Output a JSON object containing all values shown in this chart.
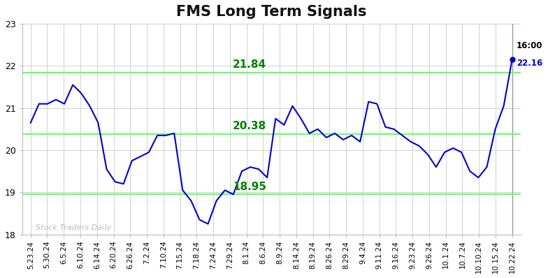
{
  "title": "FMS Long Term Signals",
  "line_color": "#0000cc",
  "hline_color": "#66ff66",
  "hline_values": [
    18.95,
    20.38,
    21.84
  ],
  "hline_label_color": "#008000",
  "hline_labels": [
    "18.95",
    "20.38",
    "21.84"
  ],
  "watermark": "Stock Traders Daily",
  "watermark_color": "#bbbbbb",
  "last_label": "16:00",
  "last_value": "22.16",
  "last_label_color": "#000000",
  "last_value_color": "#0000cc",
  "ylim": [
    18,
    23
  ],
  "yticks": [
    18,
    19,
    20,
    21,
    22,
    23
  ],
  "background_color": "#ffffff",
  "grid_color": "#d0d0d0",
  "x_labels": [
    "5.23.24",
    "5.30.24",
    "6.5.24",
    "6.10.24",
    "6.14.24",
    "6.20.24",
    "6.26.24",
    "7.2.24",
    "7.10.24",
    "7.15.24",
    "7.18.24",
    "7.24.24",
    "7.29.24",
    "8.1.24",
    "8.6.24",
    "8.9.24",
    "8.14.24",
    "8.19.24",
    "8.26.24",
    "8.29.24",
    "9.4.24",
    "9.11.24",
    "9.16.24",
    "9.23.24",
    "9.26.24",
    "10.1.24",
    "10.7.24",
    "10.10.24",
    "10.15.24",
    "10.22.24"
  ],
  "y_values": [
    20.65,
    21.1,
    21.1,
    21.2,
    21.1,
    21.55,
    21.35,
    21.05,
    20.65,
    19.55,
    19.25,
    19.2,
    19.75,
    19.85,
    19.95,
    20.35,
    20.35,
    20.4,
    19.05,
    18.8,
    18.35,
    18.25,
    18.8,
    19.05,
    18.95,
    19.5,
    19.6,
    19.55,
    19.35,
    20.75,
    20.6,
    21.05,
    20.75,
    20.4,
    20.5,
    20.3,
    20.4,
    20.25,
    20.35,
    20.2,
    21.15,
    21.1,
    20.55,
    20.5,
    20.35,
    20.2,
    20.1,
    19.9,
    19.6,
    19.95,
    20.05,
    19.95,
    19.5,
    19.35,
    19.6,
    20.5,
    21.05,
    22.16
  ]
}
